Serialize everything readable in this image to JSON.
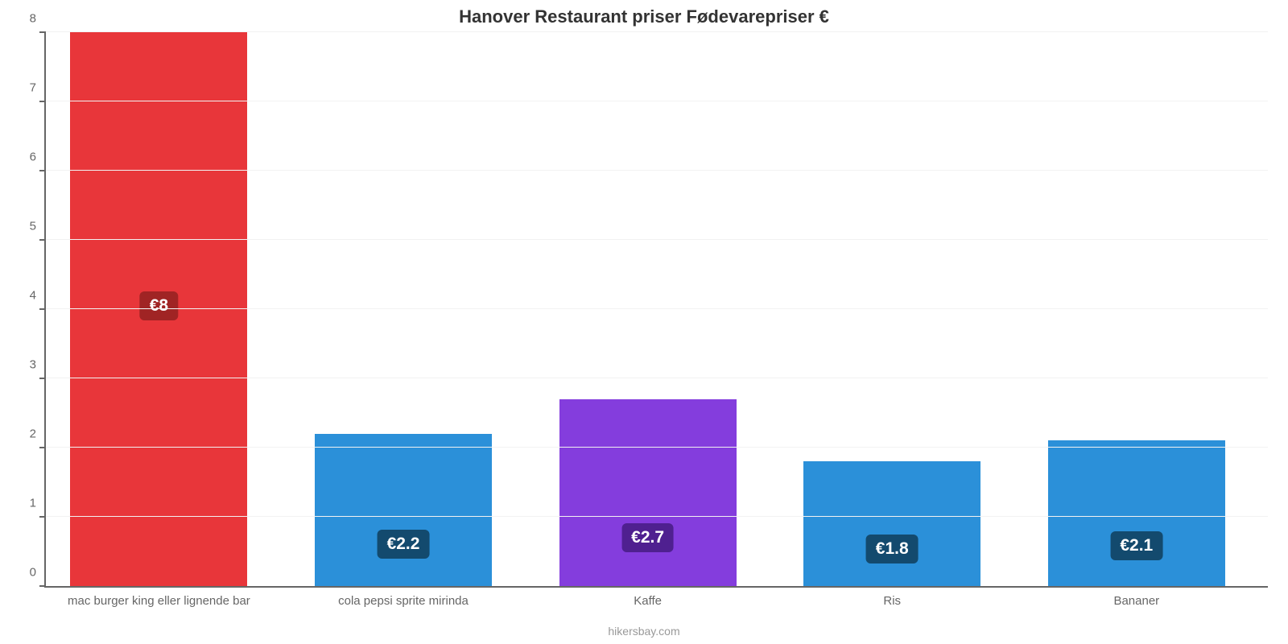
{
  "chart": {
    "type": "bar",
    "title": "Hanover Restaurant priser Fødevarepriser €",
    "title_fontsize": 22,
    "title_color": "#333333",
    "caption": "hikersbay.com",
    "caption_color": "#999999",
    "background_color": "#ffffff",
    "grid_color": "#f2f2f2",
    "axis_color": "#666666",
    "tick_label_color": "#666666",
    "tick_label_fontsize": 15,
    "badge_fontsize": 21,
    "y": {
      "min": 0,
      "max": 8,
      "ticks": [
        0,
        1,
        2,
        3,
        4,
        5,
        6,
        7,
        8
      ]
    },
    "bar_width_pct": 14.5,
    "gap_pct": 5.5,
    "left_offset_pct": 2,
    "bars": [
      {
        "label": "mac burger king eller lignende bar",
        "value": 8.0,
        "value_label": "€8",
        "color": "#e8363a",
        "badge_bg": "#a02424"
      },
      {
        "label": "cola pepsi sprite mirinda",
        "value": 2.2,
        "value_label": "€2.2",
        "color": "#2b90d9",
        "badge_bg": "#134a6e"
      },
      {
        "label": "Kaffe",
        "value": 2.7,
        "value_label": "€2.7",
        "color": "#843ddd",
        "badge_bg": "#4f2090"
      },
      {
        "label": "Ris",
        "value": 1.8,
        "value_label": "€1.8",
        "color": "#2b90d9",
        "badge_bg": "#134a6e"
      },
      {
        "label": "Bananer",
        "value": 2.1,
        "value_label": "€2.1",
        "color": "#2b90d9",
        "badge_bg": "#134a6e"
      }
    ]
  }
}
